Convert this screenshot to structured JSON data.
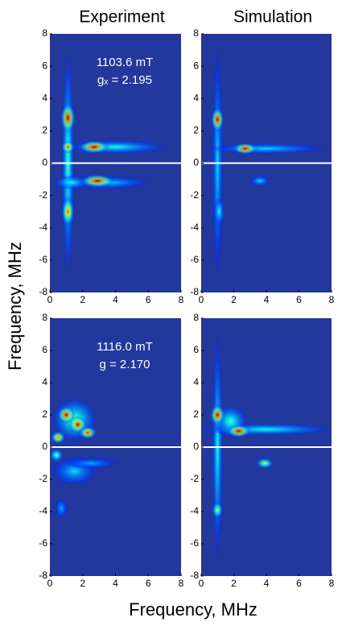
{
  "x_label": "Frequency, MHz",
  "y_label": "Frequency, MHz",
  "background": "#22389c",
  "chart_data": [
    {
      "type": "heatmap",
      "title": "Experiment",
      "annotation": [
        "1103.6 mT",
        "gₓ = 2.195"
      ],
      "xlim": [
        0,
        8
      ],
      "ylim": [
        -8,
        8
      ],
      "xticks": [
        0,
        2,
        4,
        6,
        8
      ],
      "yticks": [
        -8,
        -6,
        -4,
        -2,
        0,
        2,
        4,
        6,
        8
      ],
      "peaks": {
        "x": [
          1.1,
          4,
          3.5,
          1.3,
          1.1,
          1.1,
          2.7,
          2.9,
          1.1
        ],
        "y": [
          0,
          1,
          -1.2,
          -1.2,
          2.8,
          1.0,
          1.0,
          -1.1,
          -3.0
        ],
        "intensity": [
          0.45,
          0.4,
          0.35,
          0.4,
          1.0,
          0.9,
          1.0,
          1.0,
          0.8
        ],
        "x_width": [
          0.5,
          6,
          5,
          2,
          0.6,
          0.5,
          1.6,
          1.8,
          0.5
        ],
        "y_width": [
          14,
          0.6,
          0.5,
          0.6,
          1.6,
          0.5,
          0.5,
          0.5,
          1.6
        ]
      }
    },
    {
      "type": "heatmap",
      "title": "Simulation",
      "xlim": [
        0,
        8
      ],
      "ylim": [
        -8,
        8
      ],
      "xticks": [
        0,
        2,
        4,
        6,
        8
      ],
      "yticks": [
        -8,
        -6,
        -4,
        -2,
        0,
        2,
        4,
        6,
        8
      ],
      "peaks": {
        "x": [
          1.0,
          4,
          1.1,
          3.6,
          1.0,
          2.7
        ],
        "y": [
          0,
          0.9,
          -3,
          -1.1,
          2.7,
          0.9
        ],
        "intensity": [
          0.35,
          0.35,
          0.4,
          0.35,
          1.0,
          1.0
        ],
        "x_width": [
          0.4,
          7,
          0.4,
          1,
          0.5,
          1.2
        ],
        "y_width": [
          14,
          0.4,
          1.5,
          0.4,
          1.2,
          0.4
        ]
      }
    },
    {
      "type": "heatmap",
      "annotation": [
        "1116.0 mT",
        "g = 2.170"
      ],
      "xlim": [
        0,
        8
      ],
      "ylim": [
        -8,
        8
      ],
      "xticks": [
        0,
        2,
        4,
        6,
        8
      ],
      "yticks": [
        -8,
        -6,
        -4,
        -2,
        0,
        2,
        4,
        6,
        8
      ],
      "peaks": {
        "x": [
          1.5,
          1.5,
          0.7,
          2.5,
          0.4,
          0.5,
          1.0,
          1.7,
          2.3
        ],
        "y": [
          1.7,
          -1.5,
          -3.8,
          -1.0,
          -0.5,
          0.6,
          2.0,
          1.4,
          0.9
        ],
        "intensity": [
          0.5,
          0.35,
          0.3,
          0.3,
          0.5,
          0.8,
          1.0,
          1.0,
          0.9
        ],
        "x_width": [
          2.5,
          2.5,
          0.5,
          3,
          0.6,
          0.6,
          0.8,
          0.8,
          0.8
        ],
        "y_width": [
          2.5,
          1.5,
          1.0,
          0.4,
          0.6,
          0.5,
          0.8,
          0.8,
          0.5
        ]
      }
    },
    {
      "type": "heatmap",
      "xlim": [
        0,
        8
      ],
      "ylim": [
        -8,
        8
      ],
      "xticks": [
        0,
        2,
        4,
        6,
        8
      ],
      "yticks": [
        -8,
        -6,
        -4,
        -2,
        0,
        2,
        4,
        6,
        8
      ],
      "peaks": {
        "x": [
          1.0,
          4.0,
          1.8,
          3.9,
          1.0,
          1.0,
          2.3
        ],
        "y": [
          0,
          1.1,
          1.6,
          -1.0,
          -3.9,
          2.0,
          1.0
        ],
        "intensity": [
          0.4,
          0.4,
          0.45,
          0.6,
          0.6,
          1.0,
          1.0
        ],
        "x_width": [
          0.4,
          8,
          1.8,
          0.8,
          0.4,
          0.6,
          1.2
        ],
        "y_width": [
          14,
          0.5,
          1.8,
          0.4,
          0.8,
          1.0,
          0.5
        ]
      }
    }
  ]
}
